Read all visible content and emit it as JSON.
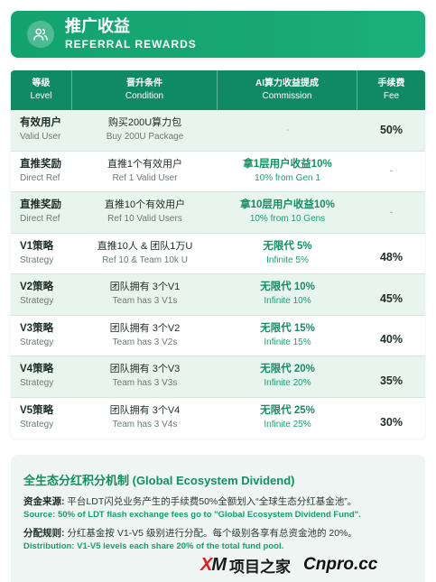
{
  "header": {
    "title": "推广收益",
    "subtitle": "REFERRAL REWARDS",
    "icon": "users-icon",
    "color": "#17a874"
  },
  "table": {
    "columns": [
      {
        "zh": "等级",
        "en": "Level"
      },
      {
        "zh": "晋升条件",
        "en": "Condition"
      },
      {
        "zh": "AI算力收益提成",
        "en": "Commission"
      },
      {
        "zh": "手续费",
        "en": "Fee"
      }
    ],
    "rows": [
      {
        "level_zh": "有效用户",
        "level_en": "Valid User",
        "cond_zh": "购买200U算力包",
        "cond_en": "Buy 200U Package",
        "comm_zh": "",
        "comm_en": "-",
        "fee": "50%"
      },
      {
        "level_zh": "直推奖励",
        "level_en": "Direct Ref",
        "cond_zh": "直推1个有效用户",
        "cond_en": "Ref 1 Valid User",
        "comm_zh": "拿1层用户收益10%",
        "comm_en": "10% from Gen 1",
        "fee": "-"
      },
      {
        "level_zh": "直推奖励",
        "level_en": "Direct Ref",
        "cond_zh": "直推10个有效用户",
        "cond_en": "Ref 10 Valid Users",
        "comm_zh": "拿10层用户收益10%",
        "comm_en": "10% from 10 Gens",
        "fee": "-"
      },
      {
        "level_zh": "V1策略",
        "level_en": "Strategy",
        "cond_zh": "直推10人 & 团队1万U",
        "cond_en": "Ref 10 & Team 10k U",
        "comm_zh": "无限代 5%",
        "comm_en": "Infinite 5%",
        "fee": "48%"
      },
      {
        "level_zh": "V2策略",
        "level_en": "Strategy",
        "cond_zh": "团队拥有 3个V1",
        "cond_en": "Team has 3 V1s",
        "comm_zh": "无限代 10%",
        "comm_en": "Infinite 10%",
        "fee": "45%"
      },
      {
        "level_zh": "V3策略",
        "level_en": "Strategy",
        "cond_zh": "团队拥有 3个V2",
        "cond_en": "Team has 3 V2s",
        "comm_zh": "无限代 15%",
        "comm_en": "Infinite 15%",
        "fee": "40%"
      },
      {
        "level_zh": "V4策略",
        "level_en": "Strategy",
        "cond_zh": "团队拥有 3个V3",
        "cond_en": "Team has 3 V3s",
        "comm_zh": "无限代 20%",
        "comm_en": "Infinite 20%",
        "fee": "35%"
      },
      {
        "level_zh": "V5策略",
        "level_en": "Strategy",
        "cond_zh": "团队拥有 3个V4",
        "cond_en": "Team has 3 V4s",
        "comm_zh": "无限代 25%",
        "comm_en": "Infinite 25%",
        "fee": "30%"
      }
    ]
  },
  "dividend": {
    "title": "全生态分红积分机制 (Global Ecosystem Dividend)",
    "source_label": "资金来源:",
    "source_text": "平台LDT闪兑业务产生的手续费50%全额划入“全球生态分红基金池”。",
    "source_en": "Source: 50% of LDT flash exchange fees go to \"Global Ecosystem Dividend Fund\".",
    "rule_label": "分配规则:",
    "rule_text": "分红基金按 V1-V5 级别进行分配。每个级别各享有总资金池的 20%。",
    "rule_en": "Distribution: V1-V5 levels each share 20% of the total fund pool."
  },
  "watermark": {
    "logo_x": "X",
    "logo_m": "M",
    "brand": "项目之家",
    "site": "Cnpro.cc"
  }
}
